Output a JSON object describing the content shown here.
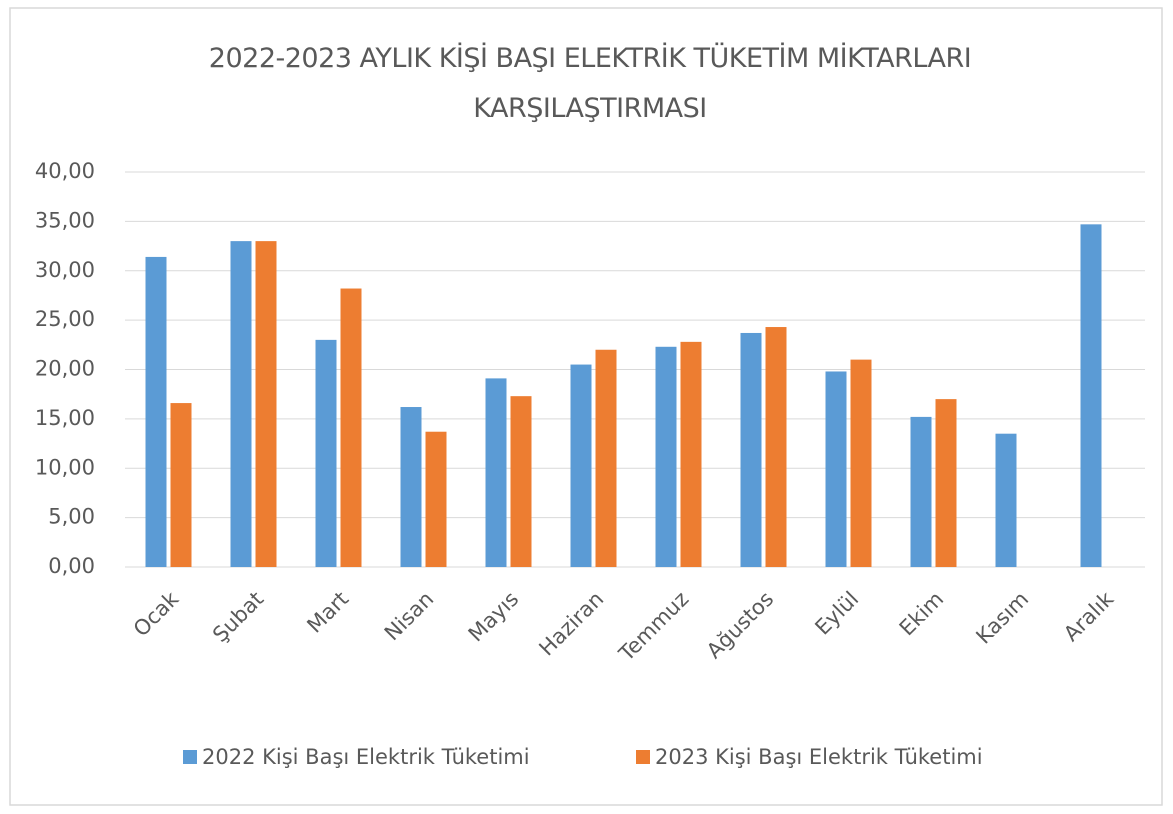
{
  "chart_data": {
    "type": "bar",
    "title": "2022-2023 AYLIK KİŞİ BAŞI ELEKTRİK TÜKETİM MİKTARLARI KARŞILAŞTIRMASI",
    "categories": [
      "Ocak",
      "Şubat",
      "Mart",
      "Nisan",
      "Mayıs",
      "Haziran",
      "Temmuz",
      "Ağustos",
      "Eylül",
      "Ekim",
      "Kasım",
      "Aralık"
    ],
    "series": [
      {
        "name": "2022 Kişi Başı Elektrik Tüketimi",
        "color": "#5b9bd5",
        "values": [
          31.4,
          33.0,
          23.0,
          16.2,
          19.1,
          20.5,
          22.3,
          23.7,
          19.8,
          15.2,
          13.5,
          34.7
        ]
      },
      {
        "name": "2023 Kişi Başı Elektrik Tüketimi",
        "color": "#ed7d31",
        "values": [
          16.6,
          33.0,
          28.2,
          13.7,
          17.3,
          22.0,
          22.8,
          24.3,
          21.0,
          17.0,
          null,
          null
        ]
      }
    ],
    "ylim": [
      0,
      40
    ],
    "yticks": [
      {
        "value": 0,
        "label": "0,00"
      },
      {
        "value": 5,
        "label": "5,00"
      },
      {
        "value": 10,
        "label": "10,00"
      },
      {
        "value": 15,
        "label": "15,00"
      },
      {
        "value": 20,
        "label": "20,00"
      },
      {
        "value": 25,
        "label": "25,00"
      },
      {
        "value": 30,
        "label": "30,00"
      },
      {
        "value": 35,
        "label": "35,00"
      },
      {
        "value": 40,
        "label": "40,00"
      }
    ],
    "grid": true,
    "legend": "bottom"
  }
}
